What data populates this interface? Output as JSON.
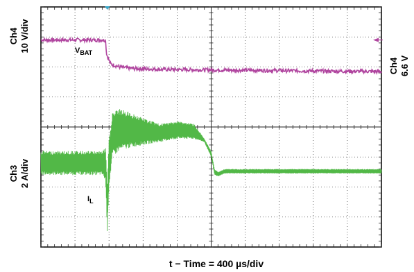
{
  "chart_data": {
    "type": "line",
    "grid": true,
    "x_axis": {
      "label": "t − Time = 400 µs/div",
      "divisions": 10,
      "units_per_div_us": 400
    },
    "left_labels": [
      {
        "channel": "Ch4",
        "scale": "10 V/div"
      },
      {
        "channel": "Ch3",
        "scale": "2 A/div"
      }
    ],
    "right_label": {
      "channel": "Ch4",
      "offset": "6.6 V"
    },
    "series": [
      {
        "name": "V",
        "name_sub": "BAT",
        "channel": "Ch4",
        "color": "#b0459f",
        "x_div": [
          0.0,
          1.9,
          1.92,
          1.95,
          2.05,
          2.3,
          2.7,
          3.5,
          5,
          7,
          8.5,
          10
        ],
        "y_div": [
          6.9,
          6.9,
          6.5,
          6.35,
          6.1,
          6.0,
          5.95,
          5.92,
          5.9,
          5.88,
          5.86,
          5.85
        ],
        "noise_div": 0.06
      },
      {
        "name": "I",
        "name_sub": "L",
        "channel": "Ch3",
        "color": "#52b847",
        "envelope": {
          "x_div": [
            0.0,
            1.8,
            1.9,
            1.95,
            2.0,
            2.1,
            2.3,
            2.6,
            3.0,
            3.5,
            4.0,
            4.5,
            4.8,
            5.0,
            5.1,
            5.2,
            5.4,
            6,
            8,
            10
          ],
          "upper_div": [
            3.2,
            3.2,
            3.3,
            2.0,
            3.6,
            4.5,
            4.6,
            4.5,
            4.3,
            4.1,
            4.2,
            4.1,
            3.6,
            3.2,
            2.6,
            2.5,
            2.6,
            2.6,
            2.6,
            2.6
          ],
          "lower_div": [
            2.4,
            2.4,
            2.2,
            0.5,
            2.0,
            3.0,
            3.2,
            3.3,
            3.4,
            3.5,
            3.6,
            3.6,
            3.5,
            3.0,
            2.4,
            2.35,
            2.45,
            2.45,
            2.45,
            2.45
          ]
        }
      }
    ],
    "trigger_marker_x_div": 1.95,
    "ch4_level_marker_y_div": 6.9
  }
}
